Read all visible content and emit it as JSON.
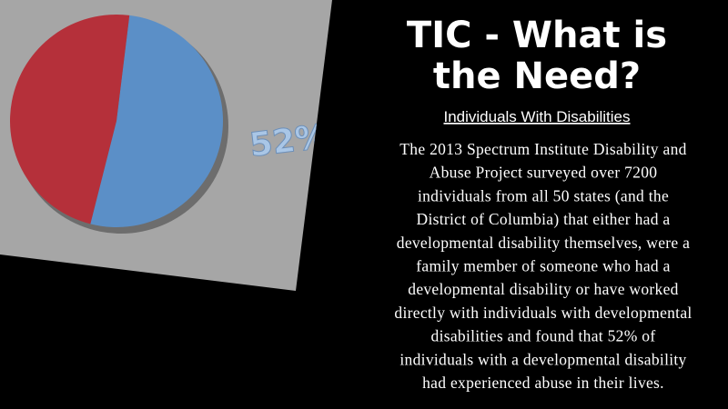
{
  "chart_data": {
    "type": "pie",
    "values": [
      52,
      48
    ],
    "value_labels": [
      "52%",
      null
    ],
    "colors": [
      "#5b8fc7",
      "#b5303a"
    ]
  },
  "title_lines": [
    "TIC - What is",
    "the Need?"
  ],
  "subtitle": "Individuals With Disabilities",
  "body_lines": [
    "The 2013 Spectrum Institute Disability and",
    "Abuse Project surveyed over 7200",
    "individuals from all 50 states (and the",
    "District of Columbia) that either had a",
    "developmental disability themselves, were a",
    "family member of someone who had a",
    "developmental disability or have worked",
    "directly with individuals with developmental",
    "disabilities and found that 52% of",
    "individuals with a developmental disability",
    "had experienced abuse in their lives."
  ]
}
